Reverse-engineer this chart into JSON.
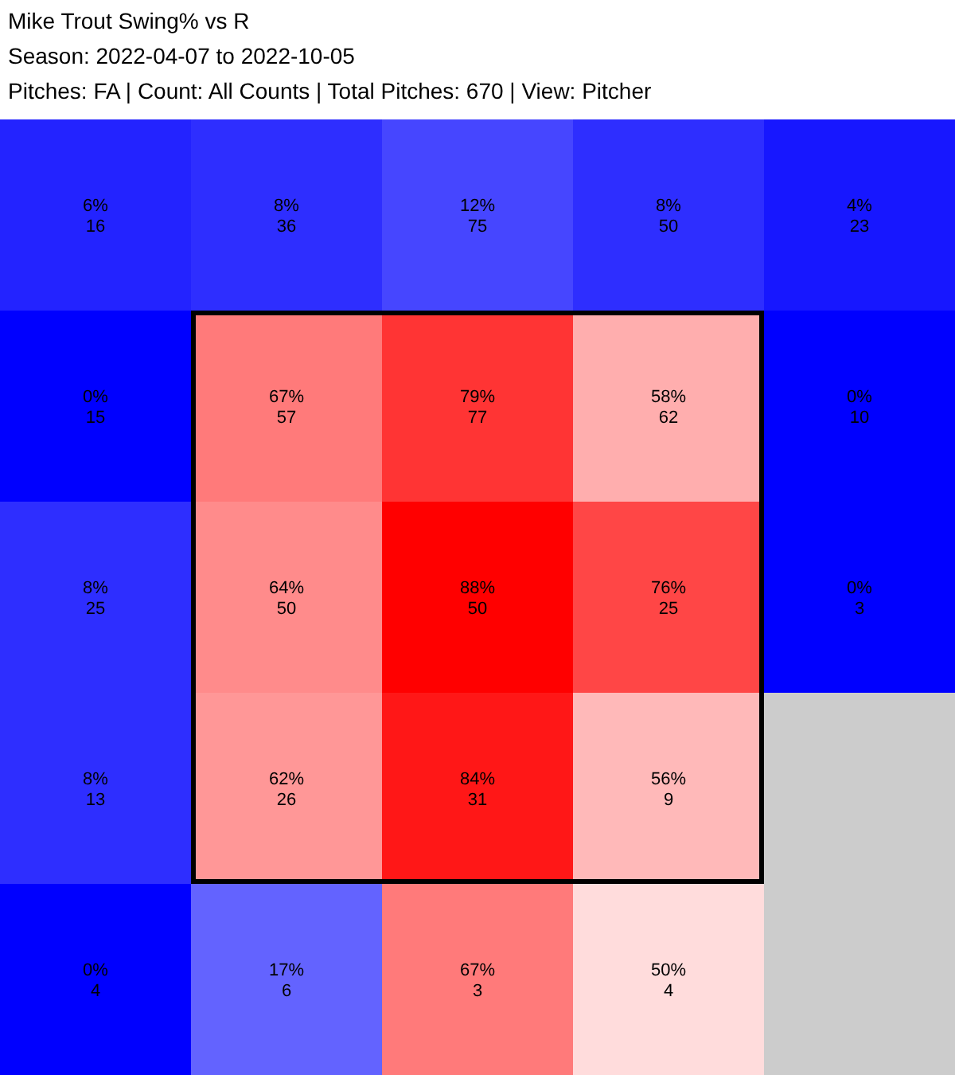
{
  "chart_data": {
    "type": "heatmap",
    "title": "Mike Trout Swing% vs R",
    "subtitle": "Season: 2022-04-07 to 2022-10-05\nPitches: FA | Count: All Counts | Total Pitches: 670 | View: Pitcher",
    "categories": [
      null,
      null,
      null,
      null,
      null
    ],
    "y_categories": [
      null,
      null,
      null,
      null,
      null
    ],
    "cells": [
      [
        6,
        8,
        12,
        8,
        4
      ],
      [
        0,
        67,
        79,
        58,
        0
      ],
      [
        8,
        64,
        88,
        76,
        0
      ],
      [
        8,
        62,
        84,
        56,
        null
      ],
      [
        0,
        17,
        67,
        50,
        null
      ]
    ],
    "cell_labels": [
      [
        "6%",
        "8%",
        "12%",
        "8%",
        "4%"
      ],
      [
        "0%",
        "67%",
        "79%",
        "58%",
        "0%"
      ],
      [
        "8%",
        "64%",
        "88%",
        "76%",
        "0%"
      ],
      [
        "8%",
        "62%",
        "84%",
        "56%",
        null
      ],
      [
        "0%",
        "17%",
        "67%",
        "50%",
        null
      ]
    ],
    "annotations": [
      "16",
      "36",
      "75",
      "50",
      "23",
      "15",
      "57",
      "77",
      "62",
      "10",
      "25",
      "50",
      "50",
      "25",
      "3",
      "13",
      "26",
      "31",
      "9",
      "4",
      "6",
      "3",
      "4"
    ]
  }
}
